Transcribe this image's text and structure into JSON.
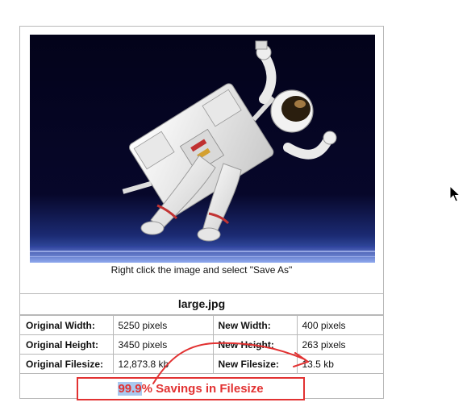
{
  "image": {
    "description_icon": "astronaut-photo",
    "caption": "Right click the image and select \"Save As\""
  },
  "file": {
    "name": "large.jpg"
  },
  "rows": [
    {
      "label_left": "Original Width:",
      "value_left": "5250 pixels",
      "label_right": "New Width:",
      "value_right": "400 pixels"
    },
    {
      "label_left": "Original Height:",
      "value_left": "3450 pixels",
      "label_right": "New Height:",
      "value_right": "263 pixels"
    },
    {
      "label_left": "Original Filesize:",
      "value_left": "12,873.8 kb",
      "label_right": "New Filesize:",
      "value_right": "13.5 kb"
    }
  ],
  "savings": {
    "percent": "99.9",
    "text": "% Savings in Filesize"
  },
  "colors": {
    "annotation": "#e23232",
    "highlight": "#a9c8ef",
    "border": "#b8b8b8"
  },
  "cursor_icon": "arrow-cursor-icon"
}
